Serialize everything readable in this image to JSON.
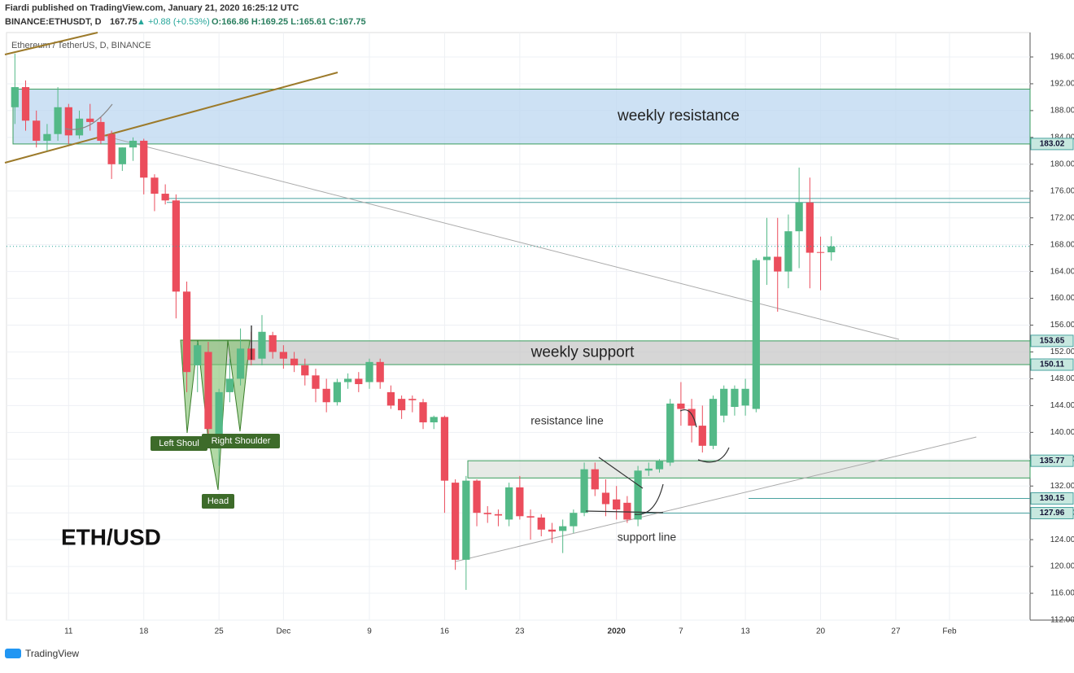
{
  "header": {
    "publisher": "Fiardi published on TradingView.com, January 21, 2020 16:25:12 UTC",
    "symbol": "BINANCE:ETHUSDT, D",
    "price": "167.75",
    "change": "▲ +0.88 (+0.53%)",
    "ohlc": "O:166.86 H:169.25 L:165.61 C:167.75"
  },
  "footer": "TradingView",
  "chart_data": {
    "type": "candlestick",
    "title": "Ethereum / TetherUS, D, BINANCE",
    "categories": [
      null,
      null,
      null,
      null,
      null,
      "11",
      null,
      null,
      null,
      null,
      null,
      null,
      "18",
      null,
      null,
      null,
      null,
      null,
      null,
      "25",
      null,
      null,
      null,
      null,
      null,
      "Dec",
      null,
      null,
      null,
      null,
      null,
      null,
      null,
      "9",
      null,
      null,
      null,
      null,
      null,
      null,
      "16",
      null,
      null,
      null,
      null,
      null,
      null,
      "23",
      null,
      null,
      null,
      null,
      null,
      null,
      null,
      null,
      "2020",
      null,
      null,
      null,
      null,
      null,
      "7",
      null,
      null,
      null,
      null,
      null,
      "13",
      null,
      null,
      null,
      null,
      null,
      null,
      "20",
      null,
      null,
      null,
      null,
      null,
      null,
      "27",
      null,
      null,
      null,
      null,
      "Feb",
      null,
      null,
      null,
      null,
      null,
      null,
      null
    ],
    "open": [
      188.5,
      191.5,
      186.5,
      183.5,
      184.5,
      188.5,
      184.3,
      186.8,
      186.3,
      184.5,
      180,
      182.5,
      183.5,
      178,
      175.6,
      174.6,
      161,
      150,
      152,
      139,
      146,
      148,
      152.5,
      151,
      154.5,
      152,
      151,
      150,
      148.5,
      146.5,
      144.5,
      147.5,
      148,
      147.5,
      150.5,
      146,
      145,
      145,
      144.5,
      141.5,
      142.3,
      132.5,
      121,
      132.8,
      128,
      127.8,
      127,
      131.8,
      127.5,
      127.3,
      125.5,
      125.3,
      126,
      128,
      134.5,
      131,
      130,
      129.5,
      127,
      134.3,
      134.5,
      135.5,
      144.3,
      143.5,
      141,
      138,
      142.5,
      143.8,
      144,
      143.5,
      165.7,
      166.2,
      164,
      170,
      174.3,
      166.9,
      166.86,
      null,
      null,
      null,
      null,
      null,
      null,
      null,
      null,
      null,
      null,
      null,
      null,
      null,
      null,
      null,
      null,
      null,
      null
    ],
    "high": [
      196.5,
      192.5,
      188,
      186,
      191.5,
      189,
      188,
      189,
      187,
      185,
      182.5,
      184,
      183.8,
      178.5,
      177,
      175.5,
      162.5,
      153.5,
      153.5,
      146.5,
      151,
      155.5,
      155,
      157.5,
      155,
      153,
      152,
      151,
      149.5,
      148,
      148,
      148.8,
      149,
      151,
      151,
      147,
      145.5,
      145.5,
      145,
      142.5,
      142.5,
      133,
      133.5,
      133,
      129,
      128.5,
      132.5,
      133.5,
      128.5,
      127.8,
      126.5,
      127,
      128.5,
      135.5,
      135.5,
      133,
      132,
      130.5,
      135,
      135.5,
      136,
      145,
      147.5,
      145,
      144,
      145.5,
      147,
      147,
      148,
      166,
      172,
      172,
      172.5,
      179.5,
      178,
      169.2,
      169.25,
      null,
      null,
      null,
      null,
      null,
      null,
      null,
      null,
      null,
      null,
      null,
      null,
      null,
      null,
      null,
      null,
      null,
      null
    ],
    "low": [
      186,
      185,
      182.5,
      182,
      183.5,
      183,
      183.8,
      185,
      183,
      177.8,
      179,
      180.5,
      175.5,
      173,
      174,
      157,
      146,
      146,
      139,
      135,
      144.5,
      147,
      150,
      150,
      151,
      149.5,
      149,
      147,
      144.5,
      143,
      144,
      146.5,
      146,
      146.5,
      146.5,
      143.5,
      142,
      143,
      140.5,
      140.5,
      128,
      119.5,
      116.5,
      126,
      126.5,
      126,
      126,
      127,
      124,
      124.5,
      123.5,
      122,
      125,
      127.5,
      130.5,
      127.5,
      127,
      126.5,
      126,
      133.5,
      134,
      135,
      141,
      138.5,
      137,
      137.5,
      141.5,
      142.5,
      142.5,
      143,
      162,
      158,
      161.5,
      164.5,
      161.5,
      161.2,
      165.61,
      null,
      null,
      null,
      null,
      null,
      null,
      null,
      null,
      null,
      null,
      null,
      null,
      null,
      null,
      null,
      null,
      null,
      null
    ],
    "close": [
      191.5,
      186.5,
      183.5,
      184.5,
      188.5,
      184.3,
      186.8,
      186.3,
      183.5,
      180,
      182.5,
      183.5,
      178,
      175.6,
      174.6,
      161,
      149,
      153,
      140.5,
      146,
      148,
      152.5,
      150.8,
      155,
      152,
      151,
      150,
      148.5,
      146.5,
      144.5,
      147.5,
      148,
      147.2,
      150.5,
      147.5,
      144,
      143.3,
      144.8,
      141.5,
      142.3,
      132.8,
      121,
      132.8,
      128,
      127.8,
      127.6,
      131.8,
      127.5,
      127.3,
      125.5,
      125.2,
      126,
      128,
      134.5,
      131.5,
      129.3,
      128.5,
      127,
      134.3,
      134.6,
      135.7,
      144.3,
      143.5,
      141,
      138,
      145,
      146.5,
      146.5,
      146.5,
      165.7,
      166.2,
      164,
      170,
      174.3,
      166.8,
      166.8,
      167.75,
      null,
      null,
      null,
      null,
      null,
      null,
      null,
      null,
      null,
      null,
      null,
      null,
      null,
      null,
      null,
      null,
      null,
      null
    ],
    "up_color": "#53b987",
    "down_color": "#eb4d5c",
    "ylim": [
      112,
      199.64
    ],
    "yticks": [
      {
        "value": 196,
        "label": "196.00"
      },
      {
        "value": 192,
        "label": "192.00"
      },
      {
        "value": 188,
        "label": "188.00"
      },
      {
        "value": 184,
        "label": "184.00"
      },
      {
        "value": 180,
        "label": "180.00"
      },
      {
        "value": 176,
        "label": "176.00"
      },
      {
        "value": 172,
        "label": "172.00"
      },
      {
        "value": 168,
        "label": "168.00"
      },
      {
        "value": 164,
        "label": "164.00"
      },
      {
        "value": 160,
        "label": "160.00"
      },
      {
        "value": 156,
        "label": "156.00"
      },
      {
        "value": 152,
        "label": "152.00"
      },
      {
        "value": 148,
        "label": "148.00"
      },
      {
        "value": 144,
        "label": "144.00"
      },
      {
        "value": 140,
        "label": "140.00"
      },
      {
        "value": 136,
        "label": "136.00"
      },
      {
        "value": 132,
        "label": "132.00"
      },
      {
        "value": 128,
        "label": "128.00"
      },
      {
        "value": 124,
        "label": "124.00"
      },
      {
        "value": 120,
        "label": "120.00"
      },
      {
        "value": 116,
        "label": "116.00"
      },
      {
        "value": 112,
        "label": "112.00"
      }
    ],
    "grid": true,
    "zones": [
      {
        "name": "weekly resistance",
        "low": 183.02,
        "high": 191.2,
        "color": "#bcd7f0"
      },
      {
        "name": "weekly support",
        "low": 150.11,
        "high": 153.65,
        "color": "#c8c8c8"
      },
      {
        "low": 133.2,
        "high": 135.77,
        "color": "#dde3dd"
      }
    ],
    "horizontal_lines": [
      174.9,
      174.3,
      130.15,
      127.96
    ],
    "price_labels": [
      183.02,
      153.65,
      150.11,
      135.77,
      130.15,
      127.96
    ],
    "annotations": {
      "resistance_line": "resistance line",
      "support_line": "support line",
      "pair": "ETH/USD",
      "left_shoulder": "Left Shoul",
      "right_shoulder": "Right Shoulder",
      "head": "Head"
    }
  }
}
